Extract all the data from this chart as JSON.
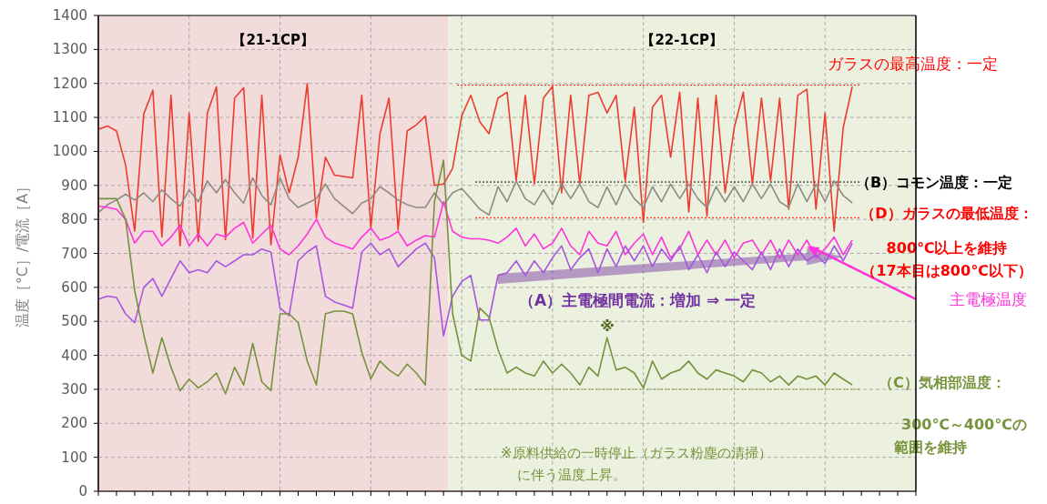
{
  "chart_data": {
    "type": "line",
    "ylabel": "温度［°C］/電流［A］",
    "categories": [
      null,
      null,
      null,
      null,
      null,
      null,
      null,
      null,
      null,
      null,
      null,
      null,
      null,
      null,
      null,
      null,
      null,
      null,
      null,
      null,
      null,
      null,
      null,
      null,
      null,
      null,
      null,
      null,
      null,
      null,
      null,
      null,
      null,
      null,
      null,
      null,
      null,
      null,
      null,
      null,
      null,
      null,
      null,
      null,
      null,
      null,
      null,
      null,
      null,
      null,
      null,
      null,
      null,
      null,
      null,
      null,
      null,
      null,
      null,
      null,
      null,
      null,
      null,
      null,
      null,
      null,
      null,
      null,
      null,
      null,
      null,
      null,
      null,
      null,
      null,
      null,
      null,
      null,
      null,
      null,
      null,
      null,
      null,
      null,
      null,
      null,
      null,
      null,
      null,
      null,
      null
    ],
    "ylim": [
      0,
      1400
    ],
    "yticks": [
      0,
      100,
      200,
      300,
      400,
      500,
      600,
      700,
      800,
      900,
      1000,
      1100,
      1200,
      1300,
      1400
    ],
    "grid": true,
    "line_style": "solid",
    "marker": "none",
    "series": [
      {
        "color": "#ee3b2e",
        "values": [
          1065,
          1075,
          1060,
          960,
          765,
          1110,
          1180,
          748,
          1165,
          722,
          1113,
          735,
          1113,
          1190,
          740,
          1157,
          1187,
          745,
          1165,
          725,
          990,
          878,
          983,
          1200,
          805,
          983,
          930,
          926,
          922,
          1165,
          775,
          1052,
          1157,
          770,
          1060,
          1078,
          1104,
          900,
          904,
          950,
          1104,
          1165,
          1087,
          1052,
          1157,
          1174,
          913,
          1165,
          904,
          1157,
          1191,
          878,
          1165,
          904,
          1165,
          1174,
          1113,
          1165,
          913,
          1130,
          791,
          1130,
          1165,
          983,
          1174,
          822,
          1157,
          809,
          1165,
          878,
          1070,
          1174,
          904,
          1157,
          913,
          1157,
          830,
          1165,
          1183,
          830,
          1113,
          765,
          1070,
          1191,
          null,
          null,
          null,
          null,
          null,
          null,
          null
        ]
      },
      {
        "color": "#8c8c84",
        "values": [
          820,
          843,
          857,
          874,
          857,
          878,
          852,
          887,
          861,
          839,
          887,
          852,
          913,
          878,
          917,
          878,
          848,
          922,
          870,
          843,
          922,
          861,
          835,
          848,
          861,
          904,
          861,
          839,
          817,
          848,
          861,
          896,
          878,
          857,
          843,
          835,
          835,
          878,
          843,
          878,
          891,
          861,
          830,
          813,
          896,
          852,
          913,
          861,
          843,
          887,
          843,
          904,
          861,
          904,
          852,
          835,
          896,
          843,
          904,
          861,
          835,
          896,
          852,
          904,
          861,
          904,
          861,
          835,
          896,
          852,
          896,
          852,
          904,
          861,
          904,
          852,
          835,
          904,
          852,
          904,
          852,
          913,
          870,
          848,
          null,
          null,
          null,
          null,
          null,
          null,
          null
        ]
      },
      {
        "name": "主電極温度",
        "color": "#ff33dd",
        "values": [
          839,
          835,
          830,
          800,
          730,
          765,
          765,
          722,
          748,
          783,
          722,
          757,
          722,
          757,
          748,
          774,
          791,
          730,
          757,
          783,
          713,
          696,
          722,
          757,
          800,
          748,
          730,
          722,
          713,
          748,
          774,
          739,
          748,
          765,
          722,
          739,
          752,
          748,
          852,
          765,
          748,
          743,
          743,
          739,
          730,
          748,
          774,
          722,
          757,
          713,
          730,
          774,
          722,
          696,
          765,
          730,
          722,
          765,
          696,
          730,
          757,
          696,
          748,
          687,
          713,
          765,
          696,
          739,
          696,
          739,
          687,
          730,
          739,
          696,
          739,
          687,
          739,
          696,
          739,
          687,
          713,
          748,
          696,
          739,
          null,
          null,
          null,
          null,
          null,
          null,
          null
        ]
      },
      {
        "color": "#a855e0",
        "values": [
          565,
          574,
          570,
          522,
          496,
          600,
          626,
          574,
          626,
          678,
          643,
          652,
          643,
          678,
          661,
          678,
          696,
          696,
          713,
          704,
          539,
          517,
          678,
          704,
          722,
          574,
          557,
          548,
          539,
          704,
          730,
          696,
          713,
          661,
          687,
          713,
          730,
          687,
          457,
          574,
          617,
          635,
          504,
          504,
          635,
          643,
          678,
          635,
          678,
          643,
          687,
          722,
          652,
          687,
          713,
          643,
          713,
          661,
          722,
          678,
          722,
          661,
          713,
          678,
          722,
          652,
          696,
          643,
          704,
          661,
          704,
          678,
          652,
          704,
          652,
          713,
          661,
          713,
          678,
          696,
          670,
          722,
          678,
          730,
          null,
          null,
          null,
          null,
          null,
          null,
          null
        ]
      },
      {
        "color": "#76913e",
        "values": [
          861,
          861,
          861,
          800,
          591,
          461,
          348,
          452,
          365,
          296,
          330,
          304,
          322,
          348,
          287,
          365,
          313,
          435,
          322,
          296,
          522,
          522,
          496,
          383,
          313,
          522,
          530,
          530,
          522,
          409,
          330,
          383,
          357,
          339,
          374,
          348,
          313,
          852,
          974,
          522,
          400,
          383,
          539,
          513,
          417,
          348,
          365,
          348,
          339,
          383,
          348,
          374,
          348,
          313,
          365,
          339,
          452,
          357,
          365,
          348,
          304,
          383,
          330,
          348,
          357,
          383,
          348,
          330,
          357,
          348,
          339,
          322,
          357,
          348,
          322,
          339,
          313,
          339,
          330,
          339,
          313,
          348,
          330,
          313,
          null,
          null,
          null,
          null,
          null,
          null,
          null
        ]
      }
    ],
    "ref_lines": [
      {
        "axis": "y",
        "value": 1195,
        "label": "ガラスの最高温度：一定",
        "color": "#ff0000",
        "line_style": "dotted"
      },
      {
        "axis": "y",
        "value": 910,
        "label": "（B）コモン温度：一定",
        "color": "#000000",
        "line_style": "dotted"
      },
      {
        "axis": "y",
        "value": 805,
        "label": "（D）ガラスの最低温度：",
        "color": "#ff0000",
        "line_style": "dotted"
      },
      {
        "axis": "y",
        "value": 300,
        "label": "（C）気相部温度：",
        "color": "#77933c",
        "line_style": "dotted"
      }
    ],
    "annotations": [
      "【21-1CP】",
      "【22-1CP】",
      "（A）主電極間電流：増加 ⇒ 一定",
      "※",
      "※原料供給の一時停止（ガラス粉塵の清掃）",
      "に伴う温度上昇。",
      "800℃以上を維持",
      "（17本目は800℃以下）",
      "300℃～400℃の",
      "範囲を維持"
    ]
  }
}
